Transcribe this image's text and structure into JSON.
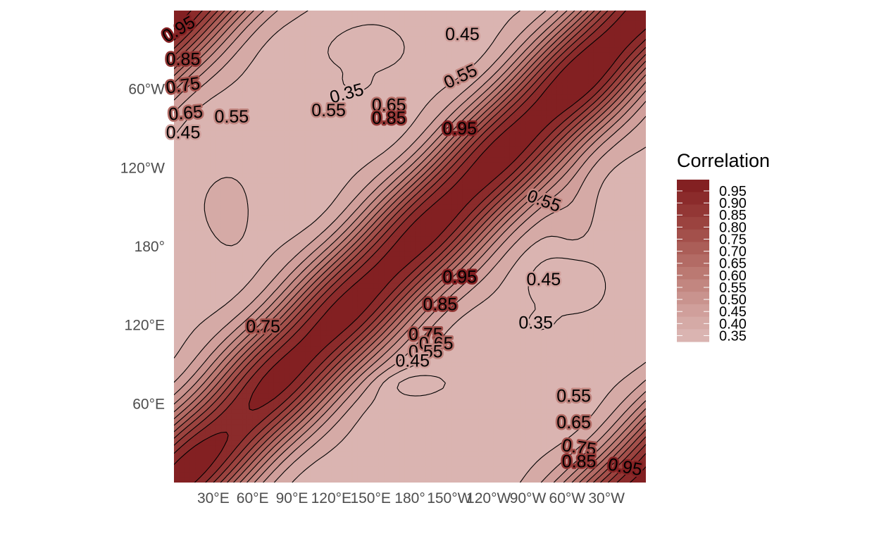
{
  "chart_data": {
    "type": "heatmap",
    "subtype": "filled-contour",
    "title": "",
    "xlabel": "",
    "ylabel": "",
    "x_ticks": [
      "30°E",
      "60°E",
      "90°E",
      "120°E",
      "150°E",
      "180°",
      "150°W",
      "120°W",
      "90°W",
      "60°W",
      "30°W"
    ],
    "y_ticks": [
      "60°E",
      "120°E",
      "180°",
      "120°W",
      "60°W"
    ],
    "x_tick_values": [
      30,
      60,
      90,
      120,
      150,
      180,
      210,
      240,
      270,
      300,
      330
    ],
    "y_tick_values": [
      60,
      120,
      180,
      240,
      300
    ],
    "xlim": [
      0,
      360
    ],
    "ylim": [
      0,
      360
    ],
    "legend": {
      "title": "Correlation",
      "position": "right",
      "levels": [
        "0.95",
        "0.90",
        "0.85",
        "0.80",
        "0.75",
        "0.70",
        "0.65",
        "0.60",
        "0.55",
        "0.50",
        "0.45",
        "0.40",
        "0.35"
      ],
      "colors": [
        "#832022",
        "#8b2b2b",
        "#933735",
        "#9b433f",
        "#a3504b",
        "#ab5e58",
        "#b36b65",
        "#bb7972",
        "#c28680",
        "#c9938e",
        "#d09f9b",
        "#d5aaa6",
        "#dab4b1"
      ]
    },
    "contour_levels": [
      0.35,
      0.4,
      0.45,
      0.5,
      0.55,
      0.6,
      0.65,
      0.7,
      0.75,
      0.8,
      0.85,
      0.9,
      0.95
    ],
    "contour_labels": [
      {
        "text": "0.95",
        "x": 4,
        "y": 345,
        "angle": -30
      },
      {
        "text": "0.85",
        "x": 7,
        "y": 322,
        "angle": 0
      },
      {
        "text": "0.75",
        "x": 7,
        "y": 302,
        "angle": -8
      },
      {
        "text": "0.65",
        "x": 9,
        "y": 281,
        "angle": -5
      },
      {
        "text": "0.55",
        "x": 44,
        "y": 278,
        "angle": 0
      },
      {
        "text": "0.45",
        "x": 7,
        "y": 266,
        "angle": 0
      },
      {
        "text": "0.45",
        "x": 220,
        "y": 341,
        "angle": 0
      },
      {
        "text": "0.35",
        "x": 132,
        "y": 296,
        "angle": -15
      },
      {
        "text": "0.55",
        "x": 118,
        "y": 283,
        "angle": 0
      },
      {
        "text": "0.65",
        "x": 164,
        "y": 287,
        "angle": 0
      },
      {
        "text": "0.85",
        "x": 164,
        "y": 277,
        "angle": 0
      },
      {
        "text": "0.95",
        "x": 218,
        "y": 269,
        "angle": 0
      },
      {
        "text": "0.55",
        "x": 219,
        "y": 309,
        "angle": -25
      },
      {
        "text": "0.55",
        "x": 282,
        "y": 214,
        "angle": 20
      },
      {
        "text": "0.95",
        "x": 218,
        "y": 156,
        "angle": 0
      },
      {
        "text": "0.45",
        "x": 282,
        "y": 154,
        "angle": 0
      },
      {
        "text": "0.85",
        "x": 203,
        "y": 135,
        "angle": 0
      },
      {
        "text": "0.35",
        "x": 276,
        "y": 121,
        "angle": 0
      },
      {
        "text": "0.75",
        "x": 68,
        "y": 118,
        "angle": 0
      },
      {
        "text": "0.75",
        "x": 192,
        "y": 112,
        "angle": 0
      },
      {
        "text": "0.65",
        "x": 200,
        "y": 105,
        "angle": 0
      },
      {
        "text": "0.55",
        "x": 192,
        "y": 99,
        "angle": 0
      },
      {
        "text": "0.45",
        "x": 182,
        "y": 92,
        "angle": 0
      },
      {
        "text": "0.55",
        "x": 305,
        "y": 65,
        "angle": 0
      },
      {
        "text": "0.65",
        "x": 305,
        "y": 45,
        "angle": 0
      },
      {
        "text": "0.75",
        "x": 309,
        "y": 26,
        "angle": 8
      },
      {
        "text": "0.85",
        "x": 309,
        "y": 15,
        "angle": 0
      },
      {
        "text": "0.95",
        "x": 344,
        "y": 11,
        "angle": 10
      }
    ]
  }
}
